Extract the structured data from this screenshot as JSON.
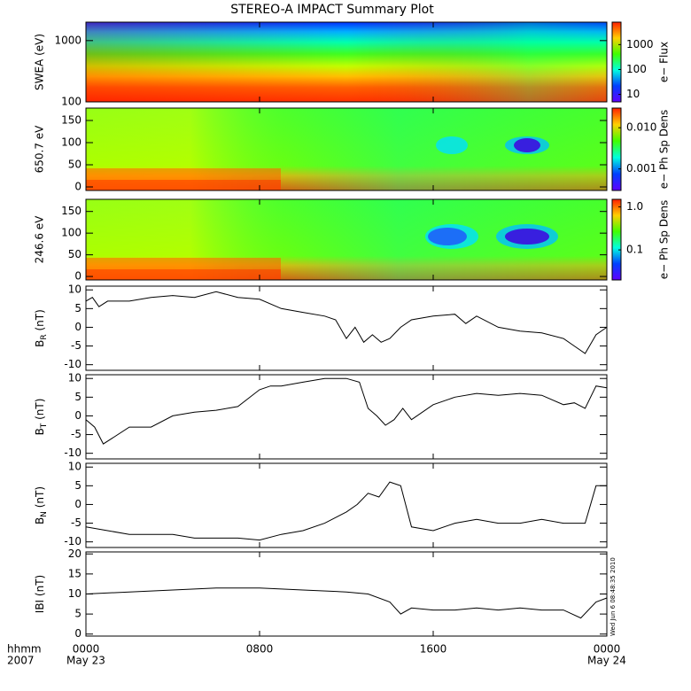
{
  "chart_data": [
    {
      "type": "heatmap",
      "title": "STEREO-A IMPACT Summary Plot",
      "ylabel": "SWEA (eV)",
      "ylog": true,
      "ylim": [
        100,
        2000
      ],
      "yticks": [
        100,
        1000
      ],
      "colorbar": {
        "label": "e− Flux",
        "log": true,
        "clim": [
          5,
          8000
        ],
        "ticks": [
          10,
          100,
          1000
        ]
      }
    },
    {
      "type": "heatmap",
      "ylabel": "650.7 eV",
      "ylim": [
        -8,
        178
      ],
      "yticks": [
        0,
        50,
        100,
        150
      ],
      "colorbar": {
        "label": "e− Ph Sp Dens",
        "log": true,
        "clim": [
          0.0003,
          0.03
        ],
        "ticks": [
          {
            "value": 0.001,
            "label": "0.001"
          },
          {
            "value": 0.01,
            "label": "0.010"
          }
        ]
      }
    },
    {
      "type": "heatmap",
      "ylabel": "246.6 eV",
      "ylim": [
        -8,
        178
      ],
      "yticks": [
        0,
        50,
        100,
        150
      ],
      "colorbar": {
        "label": "e− Ph Sp Dens",
        "log": true,
        "clim": [
          0.02,
          1.5
        ],
        "ticks": [
          0.1,
          {
            "value": 1,
            "label": "1.0"
          }
        ]
      }
    },
    {
      "type": "line",
      "ylabel": [
        "B",
        "R",
        " (nT)"
      ],
      "ylim": [
        -11.5,
        11
      ],
      "yticks": [
        -10,
        -5,
        0,
        5,
        10
      ],
      "x": [
        0,
        0.3,
        0.6,
        1,
        2,
        3,
        4,
        5,
        6,
        7,
        8,
        9,
        10,
        11,
        11.5,
        12,
        12.4,
        12.8,
        13.2,
        13.6,
        14,
        14.5,
        15,
        16,
        17,
        17.5,
        18,
        19,
        20,
        21,
        22,
        22.5,
        23,
        23.5,
        24
      ],
      "values": [
        7,
        8,
        5.5,
        7,
        7,
        8,
        8.5,
        8,
        9.5,
        8,
        7.5,
        5,
        4,
        3,
        2,
        -3,
        0,
        -4,
        -2,
        -4,
        -3,
        0,
        2,
        3,
        3.5,
        1,
        3,
        0,
        -1,
        -1.5,
        -3,
        -5,
        -7,
        -2,
        0
      ]
    },
    {
      "type": "line",
      "ylabel": [
        "B",
        "T",
        " (nT)"
      ],
      "ylim": [
        -11.5,
        11
      ],
      "yticks": [
        -10,
        -5,
        0,
        5,
        10
      ],
      "x": [
        0,
        0.4,
        0.8,
        1.2,
        2,
        3,
        4,
        5,
        6,
        7,
        8,
        8.5,
        9,
        10,
        11,
        12,
        12.6,
        13,
        13.4,
        13.8,
        14.2,
        14.6,
        15,
        16,
        17,
        18,
        19,
        20,
        21,
        22,
        22.5,
        23,
        23.5,
        24
      ],
      "values": [
        -1,
        -3,
        -7.5,
        -6,
        -3,
        -3,
        0,
        1,
        1.5,
        2.5,
        7,
        8,
        8,
        9,
        10,
        10,
        9,
        2,
        0,
        -2.5,
        -1,
        2,
        -1,
        3,
        5,
        6,
        5.5,
        6,
        5.5,
        3,
        3.5,
        2,
        8,
        7.5
      ]
    },
    {
      "type": "line",
      "ylabel": [
        "B",
        "N",
        " (nT)"
      ],
      "ylim": [
        -11.5,
        11
      ],
      "yticks": [
        -10,
        -5,
        0,
        5,
        10
      ],
      "x": [
        0,
        1,
        2,
        3,
        4,
        5,
        6,
        7,
        8,
        9,
        10,
        11,
        12,
        12.5,
        13,
        13.5,
        14,
        14.5,
        15,
        16,
        17,
        18,
        19,
        20,
        21,
        22,
        23,
        23.5,
        24
      ],
      "values": [
        -6,
        -7,
        -8,
        -8,
        -8,
        -9,
        -9,
        -9,
        -9.5,
        -8,
        -7,
        -5,
        -2,
        0,
        3,
        2,
        6,
        5,
        -6,
        -7,
        -5,
        -4,
        -5,
        -5,
        -4,
        -5,
        -5,
        5,
        5
      ]
    },
    {
      "type": "line",
      "ylabel": [
        "IBI (nT)"
      ],
      "ylim": [
        -0.5,
        20.5
      ],
      "yticks": [
        0,
        5,
        10,
        15,
        20
      ],
      "x": [
        0,
        2,
        4,
        6,
        8,
        10,
        12,
        13,
        14,
        14.5,
        15,
        16,
        17,
        18,
        19,
        20,
        21,
        22,
        22.8,
        23.5,
        24
      ],
      "values": [
        10,
        10.5,
        11,
        11.5,
        11.5,
        11,
        10.5,
        10,
        8,
        5,
        6.5,
        6,
        6,
        6.5,
        6,
        6.5,
        6,
        6,
        4,
        8,
        9
      ],
      "xlim": [
        0,
        24
      ],
      "xticks": [
        {
          "value": 0,
          "label": "0000"
        },
        {
          "value": 8,
          "label": "0800"
        },
        {
          "value": 16,
          "label": "1600"
        },
        {
          "value": 24,
          "label": "0000"
        }
      ],
      "date_labels": [
        "May 23",
        "May 24"
      ],
      "row_labels": [
        "hhmm",
        "2007"
      ],
      "timestamp": "Wed Jun  6 08:48:35 2010"
    }
  ]
}
